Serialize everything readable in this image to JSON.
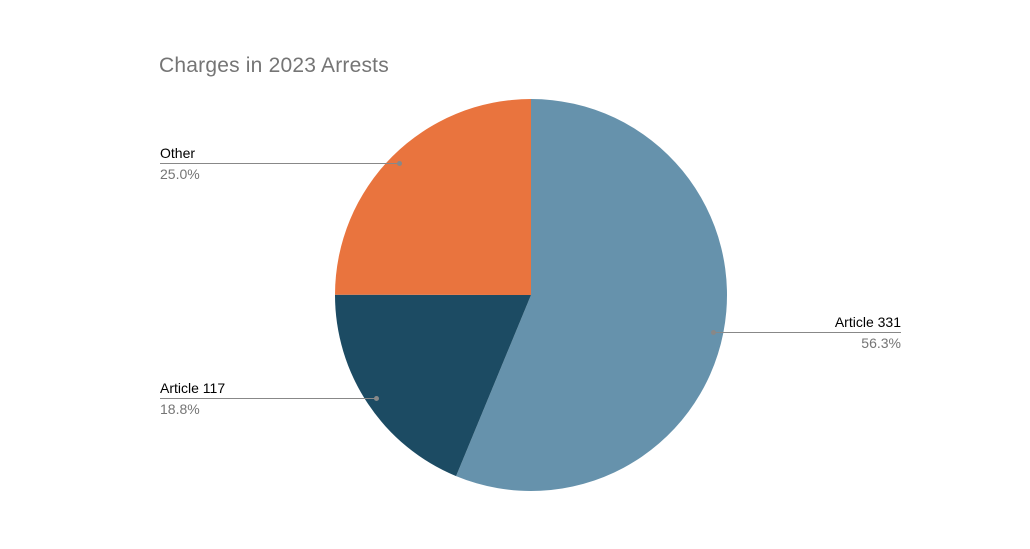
{
  "chart_data": {
    "type": "pie",
    "title": "Charges in 2023 Arrests",
    "legend_position": "labeled-callouts",
    "start_angle_deg": 0,
    "direction": "clockwise",
    "slices": [
      {
        "label": "Article 331",
        "value": 56.3,
        "pct_label": "56.3%",
        "color": "#6692AC"
      },
      {
        "label": "Article 117",
        "value": 18.8,
        "pct_label": "18.8%",
        "color": "#1C4B63"
      },
      {
        "label": "Other",
        "value": 25.0,
        "pct_label": "25.0%",
        "color": "#E9743E"
      }
    ],
    "styles": {
      "title_color": "#757575",
      "label_color": "#000000",
      "pct_color": "#757575",
      "line_color": "#888888",
      "background": "#FFFFFF"
    }
  }
}
